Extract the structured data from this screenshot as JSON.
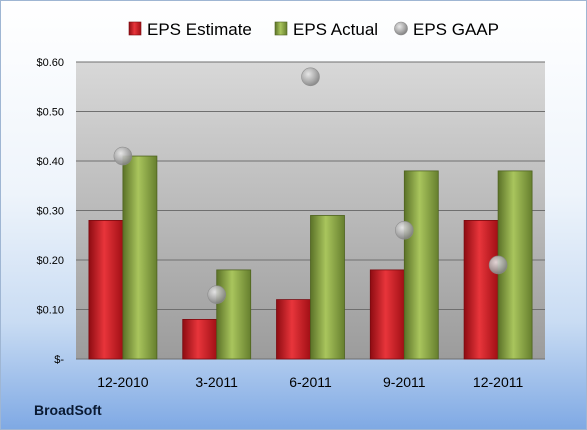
{
  "company": "BroadSoft",
  "chart_data": {
    "type": "bar",
    "categories": [
      "12-2010",
      "3-2011",
      "6-2011",
      "9-2011",
      "12-2011"
    ],
    "series": [
      {
        "name": "EPS Estimate",
        "type": "bar",
        "color": "#c0141b",
        "values": [
          0.28,
          0.08,
          0.12,
          0.18,
          0.28
        ]
      },
      {
        "name": "EPS Actual",
        "type": "bar",
        "color": "#7f9a3a",
        "values": [
          0.41,
          0.18,
          0.29,
          0.38,
          0.38
        ]
      },
      {
        "name": "EPS GAAP",
        "type": "scatter",
        "color": "#a8a8a8",
        "values": [
          0.41,
          0.13,
          0.57,
          0.26,
          0.19
        ]
      }
    ],
    "ylim": [
      0,
      0.6
    ],
    "yticks": [
      0,
      0.1,
      0.2,
      0.3,
      0.4,
      0.5,
      0.6
    ],
    "ytick_labels": [
      "$-",
      "$0.10",
      "$0.20",
      "$0.30",
      "$0.40",
      "$0.50",
      "$0.60"
    ],
    "grid": true,
    "legend_position": "top"
  }
}
